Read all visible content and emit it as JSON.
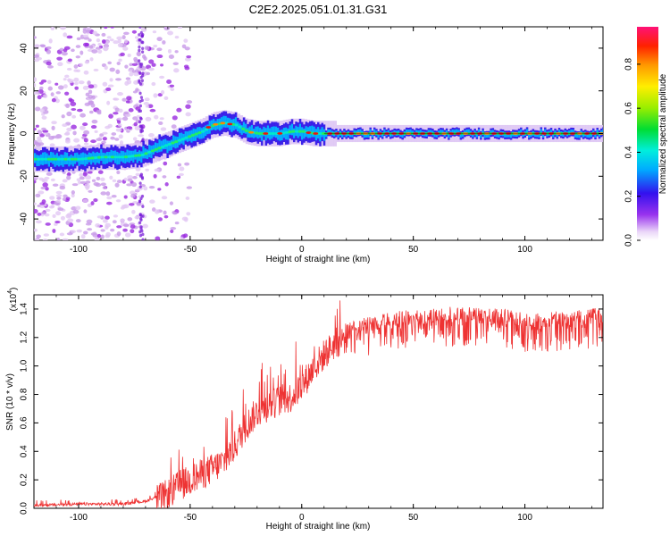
{
  "title": "C2E2.2025.051.01.31.G31",
  "chart_data": [
    {
      "type": "heatmap",
      "xlabel": "Height of straight line (km)",
      "ylabel": "Frequency (Hz)",
      "xlim": [
        -120,
        135
      ],
      "ylim": [
        -50,
        50
      ],
      "xticks": [
        -100,
        -50,
        0,
        50,
        100
      ],
      "yticks": [
        -40,
        -20,
        0,
        20,
        40
      ],
      "colorbar": {
        "label": "Normalized spectral amplitude",
        "ticks": [
          "0.0",
          "0.2",
          "0.4",
          "0.6",
          "0.8"
        ],
        "range": [
          0,
          0.97
        ]
      },
      "ridge": {
        "x": [
          -120,
          -110,
          -100,
          -90,
          -80,
          -72,
          -65,
          -60,
          -55,
          -50,
          -45,
          -40,
          -35,
          -30,
          -25,
          -20,
          -15,
          -10,
          -5,
          0,
          5,
          10,
          20,
          40,
          60,
          80,
          100,
          120,
          135
        ],
        "frequency": [
          -12,
          -12,
          -12,
          -11,
          -11,
          -10,
          -7,
          -5,
          -3,
          -1,
          1,
          4,
          5,
          4,
          1,
          0,
          0,
          0,
          1,
          1,
          0,
          0,
          0,
          0,
          0,
          0,
          0,
          0,
          0
        ]
      }
    },
    {
      "type": "line",
      "xlabel": "Height of straight line (km)",
      "ylabel": "SNR (10 * v/v)",
      "y_multiplier": "(x10",
      "y_multiplier_exp": "4",
      "y_multiplier_close": ")",
      "xlim": [
        -120,
        135
      ],
      "ylim": [
        0,
        1.5
      ],
      "xticks": [
        -100,
        -50,
        0,
        50,
        100
      ],
      "yticks": [
        "0.0",
        "0.2",
        "0.4",
        "0.6",
        "0.8",
        "1.0",
        "1.2",
        "1.4"
      ],
      "color": "#ee3333",
      "series": [
        {
          "x": [
            -120,
            -100,
            -80,
            -70,
            -65,
            -60,
            -55,
            -50,
            -45,
            -40,
            -35,
            -30,
            -25,
            -20,
            -15,
            -10,
            -5,
            0,
            5,
            10,
            15,
            20,
            25,
            30,
            40,
            50,
            60,
            70,
            80,
            90,
            100,
            110,
            120,
            135
          ],
          "values": [
            0.02,
            0.03,
            0.03,
            0.05,
            0.08,
            0.12,
            0.18,
            0.22,
            0.26,
            0.3,
            0.35,
            0.46,
            0.6,
            0.7,
            0.74,
            0.78,
            0.8,
            0.88,
            1.0,
            1.1,
            1.18,
            1.22,
            1.25,
            1.27,
            1.3,
            1.32,
            1.33,
            1.34,
            1.33,
            1.32,
            1.3,
            1.3,
            1.31,
            1.33
          ]
        }
      ]
    }
  ]
}
